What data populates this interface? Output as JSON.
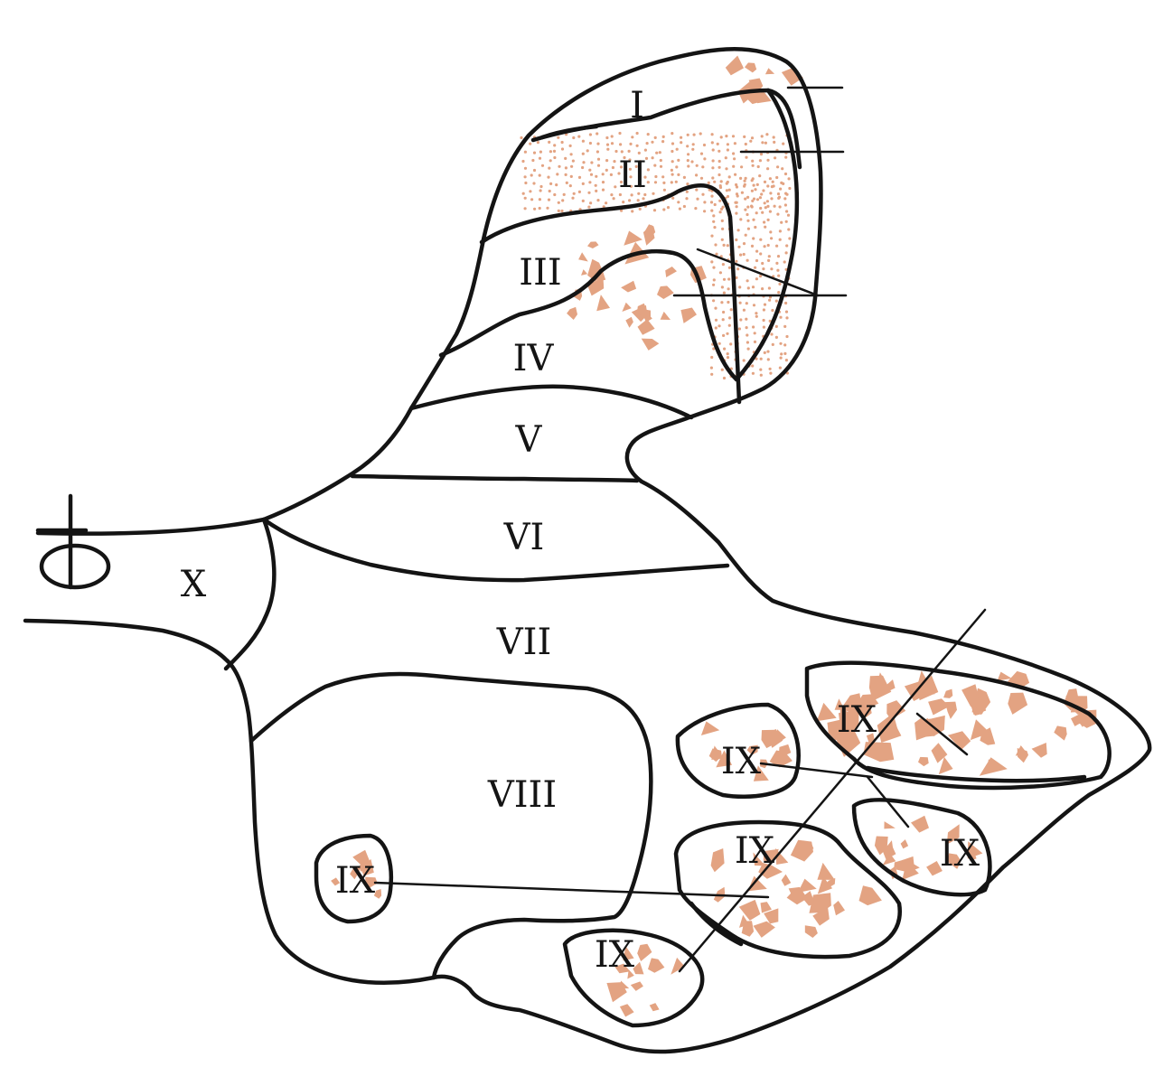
{
  "colors": {
    "ink": "#141414",
    "fill": "#E3A382",
    "background": "#ffffff"
  },
  "labels": {
    "zone_1": "I",
    "zone_2": "II",
    "zone_3": "III",
    "zone_4": "IV",
    "zone_5": "V",
    "zone_6": "VI",
    "zone_7": "VII",
    "zone_8": "VIII",
    "zone_9": "IX",
    "zone_10": "X"
  }
}
